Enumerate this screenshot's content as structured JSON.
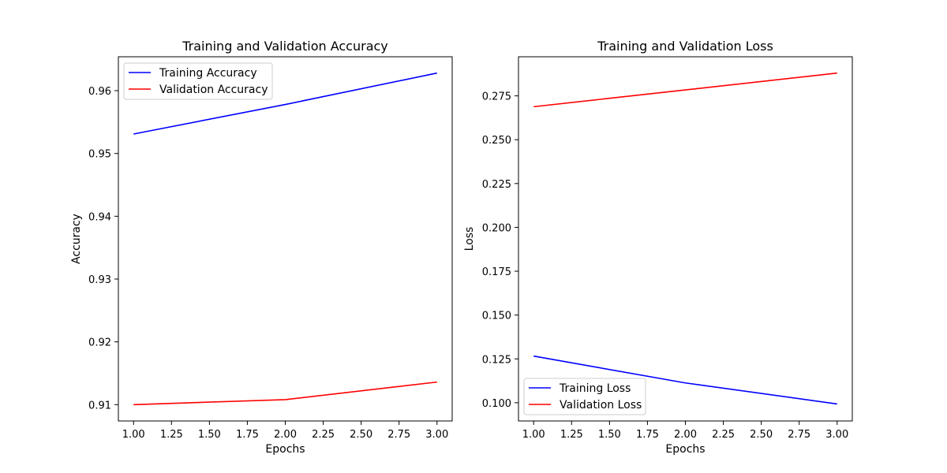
{
  "chart_data": [
    {
      "type": "line",
      "title": "Training and Validation Accuracy",
      "xlabel": "Epochs",
      "ylabel": "Accuracy",
      "xlim": [
        0.9,
        3.1
      ],
      "ylim": [
        0.9074,
        0.9654
      ],
      "xticks": [
        1.0,
        1.25,
        1.5,
        1.75,
        2.0,
        2.25,
        2.5,
        2.75,
        3.0
      ],
      "xtick_labels": [
        "1.00",
        "1.25",
        "1.50",
        "1.75",
        "2.00",
        "2.25",
        "2.50",
        "2.75",
        "3.00"
      ],
      "yticks": [
        0.91,
        0.92,
        0.93,
        0.94,
        0.95,
        0.96
      ],
      "ytick_labels": [
        "0.91",
        "0.92",
        "0.93",
        "0.94",
        "0.95",
        "0.96"
      ],
      "grid": false,
      "legend_position": "upper left",
      "x": [
        1,
        2,
        3
      ],
      "series": [
        {
          "name": "Training Accuracy",
          "color": "#0000ff",
          "values": [
            0.9531,
            0.9578,
            0.9628
          ]
        },
        {
          "name": "Validation Accuracy",
          "color": "#ff0000",
          "values": [
            0.91,
            0.9108,
            0.9136
          ]
        }
      ]
    },
    {
      "type": "line",
      "title": "Training and Validation Loss",
      "xlabel": "Epochs",
      "ylabel": "Loss",
      "xlim": [
        0.9,
        3.1
      ],
      "ylim": [
        0.0896,
        0.2973
      ],
      "xticks": [
        1.0,
        1.25,
        1.5,
        1.75,
        2.0,
        2.25,
        2.5,
        2.75,
        3.0
      ],
      "xtick_labels": [
        "1.00",
        "1.25",
        "1.50",
        "1.75",
        "2.00",
        "2.25",
        "2.50",
        "2.75",
        "3.00"
      ],
      "yticks": [
        0.1,
        0.125,
        0.15,
        0.175,
        0.2,
        0.225,
        0.25,
        0.275
      ],
      "ytick_labels": [
        "0.100",
        "0.125",
        "0.150",
        "0.175",
        "0.200",
        "0.225",
        "0.250",
        "0.275"
      ],
      "grid": false,
      "legend_position": "lower left",
      "x": [
        1,
        2,
        3
      ],
      "series": [
        {
          "name": "Training Loss",
          "color": "#0000ff",
          "values": [
            0.1266,
            0.1113,
            0.0993
          ]
        },
        {
          "name": "Validation Loss",
          "color": "#ff0000",
          "values": [
            0.2688,
            0.2784,
            0.288
          ]
        }
      ]
    }
  ]
}
